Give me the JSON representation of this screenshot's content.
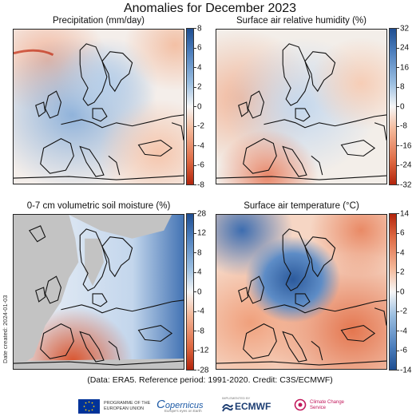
{
  "title": "Anomalies for December 2023",
  "panels": [
    {
      "title": "Precipitation (mm/day)",
      "ticks": [
        "8",
        "6",
        "4",
        "2",
        "0",
        "-2",
        "-4",
        "-6",
        "-8"
      ],
      "tick_values": [
        8,
        6,
        4,
        2,
        0,
        -2,
        -4,
        -6,
        -8
      ],
      "colorbar": "blue-top"
    },
    {
      "title": "Surface air relative humidity (%)",
      "ticks": [
        "32",
        "24",
        "16",
        "8",
        "0",
        "-8",
        "-16",
        "-24",
        "-32"
      ],
      "tick_values": [
        32,
        24,
        16,
        8,
        0,
        -8,
        -16,
        -24,
        -32
      ],
      "colorbar": "blue-top"
    },
    {
      "title": "0-7 cm volumetric soil moisture (%)",
      "ticks": [
        "28",
        "12",
        "8",
        "4",
        "0",
        "-4",
        "-8",
        "-12",
        "-28"
      ],
      "tick_values": [
        28,
        12,
        8,
        4,
        0,
        -4,
        -8,
        -12,
        -28
      ],
      "colorbar": "blue-top"
    },
    {
      "title": "Surface air temperature (°C)",
      "ticks": [
        "14",
        "6",
        "4",
        "2",
        "0",
        "-2",
        "-4",
        "-6",
        "-14"
      ],
      "tick_values": [
        14,
        6,
        4,
        2,
        0,
        -2,
        -4,
        -6,
        -14
      ],
      "colorbar": "red-top"
    }
  ],
  "date_created": "Date created: 2024-01-03",
  "credit": "(Data: ERA5.  Reference period: 1991-2020.  Credit: C3S/ECMWF)",
  "logos": {
    "eu": "PROGRAMME OF THE EUROPEAN UNION",
    "copernicus": "opernicus",
    "copernicus_sub": "Europe's eyes on Earth",
    "ecmwf_sub": "IMPLEMENTED BY",
    "ecmwf": "ECMWF",
    "c3s": "Climate Change Service"
  },
  "colors": {
    "blue_dark": "#1f4e91",
    "blue_light": "#c8dcef",
    "white": "#f7f7f7",
    "red_light": "#f7c9ae",
    "red_dark": "#c0290f",
    "gray_mask": "#c3c3c3"
  }
}
